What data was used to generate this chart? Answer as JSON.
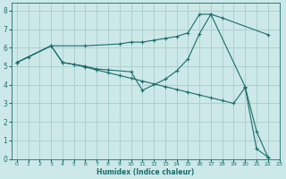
{
  "xlabel": "Humidex (Indice chaleur)",
  "bg_color": "#cce8e8",
  "grid_color": "#aacccc",
  "line_color": "#1a6e6a",
  "xlim": [
    -0.5,
    23
  ],
  "ylim": [
    0,
    8.4
  ],
  "xticks": [
    0,
    1,
    2,
    3,
    4,
    5,
    6,
    7,
    8,
    9,
    10,
    11,
    12,
    13,
    14,
    15,
    16,
    17,
    18,
    19,
    20,
    21,
    22,
    23
  ],
  "yticks": [
    0,
    1,
    2,
    3,
    4,
    5,
    6,
    7,
    8
  ],
  "line1_x": [
    0,
    1,
    3,
    6,
    9,
    10,
    11,
    12,
    13,
    14,
    15,
    16,
    17,
    18,
    22
  ],
  "line1_y": [
    5.2,
    5.5,
    6.1,
    6.1,
    6.2,
    6.3,
    6.3,
    6.4,
    6.5,
    6.6,
    6.8,
    7.8,
    7.8,
    7.6,
    6.7
  ],
  "line2_x": [
    0,
    3,
    4,
    5,
    6,
    7,
    8,
    10,
    11,
    13,
    14,
    15,
    16,
    17,
    20,
    21,
    22
  ],
  "line2_y": [
    5.2,
    6.1,
    5.2,
    5.1,
    5.0,
    4.85,
    4.8,
    4.7,
    3.7,
    4.3,
    4.75,
    5.4,
    6.75,
    7.8,
    3.9,
    1.5,
    0.1
  ],
  "line3_x": [
    0,
    3,
    4,
    5,
    6,
    7,
    8,
    9,
    10,
    11,
    12,
    13,
    14,
    15,
    16,
    17,
    18,
    19,
    20,
    21,
    22
  ],
  "line3_y": [
    5.2,
    6.1,
    5.2,
    5.1,
    4.95,
    4.8,
    4.65,
    4.5,
    4.35,
    4.2,
    4.05,
    3.9,
    3.75,
    3.6,
    3.45,
    3.3,
    3.15,
    3.0,
    3.85,
    0.55,
    0.1
  ]
}
